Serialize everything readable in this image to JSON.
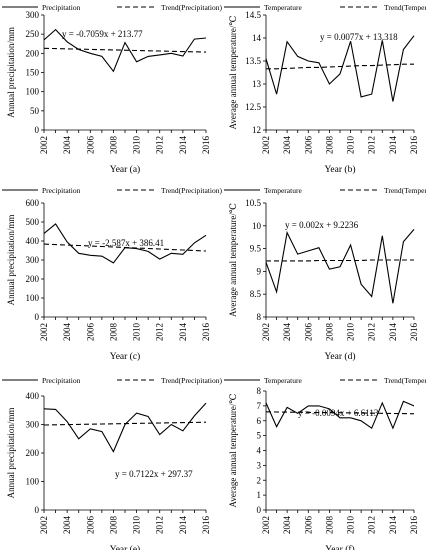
{
  "chart_data": [
    {
      "type": "line",
      "ylabel": "Annual precipitation/mm",
      "xlabel": "Year",
      "panel_label": "(a)",
      "equation": "y = -0.7059x + 213.77",
      "ylim": [
        0,
        300
      ],
      "yticks": [
        0,
        50,
        100,
        150,
        200,
        250,
        300
      ],
      "x": [
        2002,
        2003,
        2004,
        2005,
        2006,
        2007,
        2008,
        2009,
        2010,
        2011,
        2012,
        2013,
        2014,
        2015,
        2016
      ],
      "xticks": [
        2002,
        2004,
        2006,
        2008,
        2010,
        2012,
        2014,
        2016
      ],
      "series": [
        {
          "name": "Precipitation",
          "values": [
            235,
            262,
            230,
            210,
            200,
            192,
            153,
            228,
            178,
            192,
            196,
            200,
            193,
            237,
            240
          ]
        },
        {
          "name": "Trend(Precipitation)",
          "values": [
            213.06,
            212.36,
            211.65,
            210.94,
            210.24,
            209.53,
            208.83,
            208.12,
            207.42,
            206.71,
            206.0,
            205.3,
            204.59,
            203.89,
            203.18
          ]
        }
      ]
    },
    {
      "type": "line",
      "ylabel": "Average annual temperature/℃",
      "xlabel": "Year",
      "panel_label": "(b)",
      "equation": "y = 0.0077x + 13.318",
      "ylim": [
        12.0,
        14.5
      ],
      "yticks": [
        "12",
        "12.5",
        "13",
        "13.5",
        "14",
        "14.5"
      ],
      "x": [
        2002,
        2003,
        2004,
        2005,
        2006,
        2007,
        2008,
        2009,
        2010,
        2011,
        2012,
        2013,
        2014,
        2015,
        2016
      ],
      "xticks": [
        2002,
        2004,
        2006,
        2008,
        2010,
        2012,
        2014,
        2016
      ],
      "series": [
        {
          "name": "Temperature",
          "values": [
            13.55,
            12.78,
            13.92,
            13.6,
            13.5,
            13.46,
            13.0,
            13.22,
            13.93,
            12.72,
            12.78,
            13.95,
            12.62,
            13.75,
            14.05
          ]
        },
        {
          "name": "Trend(Temperature)",
          "values": [
            13.33,
            13.33,
            13.34,
            13.35,
            13.36,
            13.36,
            13.37,
            13.38,
            13.39,
            13.4,
            13.4,
            13.41,
            13.42,
            13.43,
            13.43
          ]
        }
      ]
    },
    {
      "type": "line",
      "ylabel": "Annual precipitation/mm",
      "xlabel": "Year",
      "panel_label": "(c)",
      "equation": "y = -2.587x + 386.41",
      "ylim": [
        0,
        600
      ],
      "yticks": [
        0,
        100,
        200,
        300,
        400,
        500,
        600
      ],
      "x": [
        2002,
        2003,
        2004,
        2005,
        2006,
        2007,
        2008,
        2009,
        2010,
        2011,
        2012,
        2013,
        2014,
        2015,
        2016
      ],
      "xticks": [
        2002,
        2004,
        2006,
        2008,
        2010,
        2012,
        2014,
        2016
      ],
      "series": [
        {
          "name": "Precipitation",
          "values": [
            440,
            490,
            395,
            335,
            325,
            320,
            285,
            365,
            360,
            345,
            305,
            335,
            330,
            390,
            430
          ]
        },
        {
          "name": "Trend(Precipitation)",
          "values": [
            383.82,
            381.24,
            378.65,
            376.06,
            373.48,
            370.89,
            368.3,
            365.71,
            363.13,
            360.54,
            357.95,
            355.37,
            352.78,
            350.19,
            347.61
          ]
        }
      ]
    },
    {
      "type": "line",
      "ylabel": "Average annual temperature/℃",
      "xlabel": "Year",
      "panel_label": "(d)",
      "equation": "y = 0.002x + 9.2236",
      "ylim": [
        8.0,
        10.5
      ],
      "yticks": [
        "8",
        "8.5",
        "9",
        "9.5",
        "10",
        "10.5"
      ],
      "x": [
        2002,
        2003,
        2004,
        2005,
        2006,
        2007,
        2008,
        2009,
        2010,
        2011,
        2012,
        2013,
        2014,
        2015,
        2016
      ],
      "xticks": [
        2002,
        2004,
        2006,
        2008,
        2010,
        2012,
        2014,
        2016
      ],
      "series": [
        {
          "name": "Temperature",
          "values": [
            9.2,
            8.55,
            9.85,
            9.38,
            9.45,
            9.52,
            9.05,
            9.1,
            9.58,
            8.72,
            8.45,
            9.78,
            8.3,
            9.65,
            9.92
          ]
        },
        {
          "name": "Trend(Temperature)",
          "values": [
            9.23,
            9.23,
            9.23,
            9.23,
            9.23,
            9.24,
            9.24,
            9.24,
            9.24,
            9.24,
            9.25,
            9.25,
            9.25,
            9.25,
            9.25
          ]
        }
      ]
    },
    {
      "type": "line",
      "ylabel": "Annual precipitation/mm",
      "xlabel": "Year",
      "panel_label": "(e)",
      "equation": "y = 0.7122x + 297.37",
      "ylim": [
        0,
        400
      ],
      "yticks": [
        0,
        100,
        200,
        300,
        400
      ],
      "x": [
        2002,
        2003,
        2004,
        2005,
        2006,
        2007,
        2008,
        2009,
        2010,
        2011,
        2012,
        2013,
        2014,
        2015,
        2016
      ],
      "xticks": [
        2002,
        2004,
        2006,
        2008,
        2010,
        2012,
        2014,
        2016
      ],
      "series": [
        {
          "name": "Precipitation",
          "values": [
            355,
            353,
            310,
            250,
            285,
            275,
            205,
            300,
            340,
            328,
            265,
            300,
            278,
            330,
            375
          ]
        },
        {
          "name": "Trend(Precipitation)",
          "values": [
            298.08,
            298.79,
            299.51,
            300.22,
            300.93,
            301.64,
            302.36,
            303.07,
            303.78,
            304.49,
            305.2,
            305.92,
            306.63,
            307.34,
            308.05
          ]
        }
      ]
    },
    {
      "type": "line",
      "ylabel": "Average annual temperature/℃",
      "xlabel": "Year",
      "panel_label": "(f)",
      "equation": "y = -0.0094x + 6.6113",
      "ylim": [
        0,
        8
      ],
      "yticks": [
        0,
        1,
        2,
        3,
        4,
        5,
        6,
        7,
        8
      ],
      "x": [
        2002,
        2003,
        2004,
        2005,
        2006,
        2007,
        2008,
        2009,
        2010,
        2011,
        2012,
        2013,
        2014,
        2015,
        2016
      ],
      "xticks": [
        2002,
        2004,
        2006,
        2008,
        2010,
        2012,
        2014,
        2016
      ],
      "series": [
        {
          "name": "Temperature",
          "values": [
            7.2,
            5.6,
            6.9,
            6.5,
            7.0,
            7.0,
            6.8,
            6.2,
            6.2,
            6.0,
            5.5,
            7.2,
            5.5,
            7.3,
            7.0
          ]
        },
        {
          "name": "Trend(Temperature)",
          "values": [
            6.6,
            6.59,
            6.58,
            6.57,
            6.56,
            6.55,
            6.55,
            6.54,
            6.53,
            6.52,
            6.51,
            6.5,
            6.49,
            6.48,
            6.47
          ]
        }
      ]
    }
  ]
}
